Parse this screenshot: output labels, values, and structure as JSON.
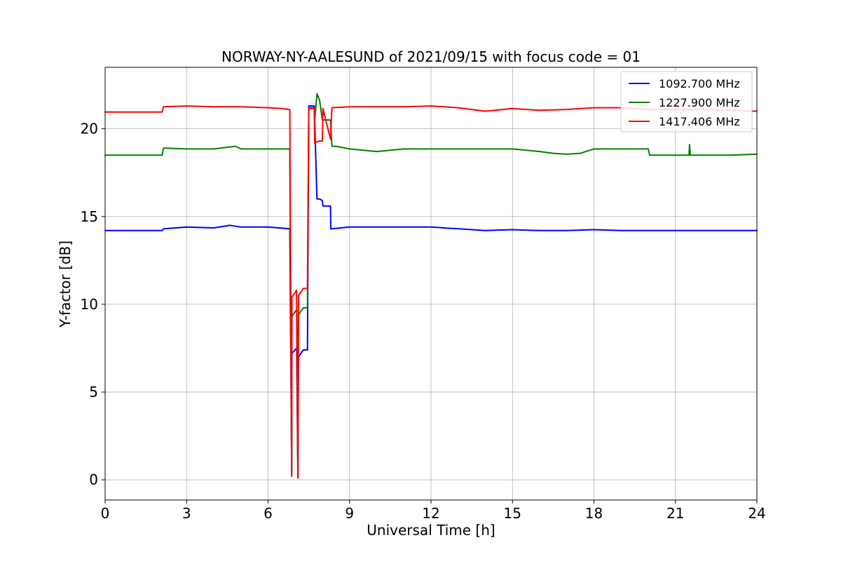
{
  "chart_data": {
    "type": "line",
    "title": "NORWAY-NY-AALESUND of 2021/09/15 with focus code = 01",
    "xlabel": "Universal Time [h]",
    "ylabel": "Y-factor [dB]",
    "xlim": [
      0,
      24
    ],
    "ylim": [
      -1.15,
      23.5
    ],
    "xticks": [
      0,
      3,
      6,
      9,
      12,
      15,
      18,
      21,
      24
    ],
    "xtick_labels": [
      "0",
      "3",
      "6",
      "9",
      "12",
      "15",
      "18",
      "21",
      "24"
    ],
    "yticks": [
      0,
      5,
      10,
      15,
      20
    ],
    "ytick_labels": [
      "0",
      "5",
      "10",
      "15",
      "20"
    ],
    "grid": true,
    "legend_position": "top-right",
    "series": [
      {
        "name": "1092.700 MHz",
        "color": "#0000ff",
        "x": [
          0,
          2.1,
          2.15,
          3,
          4,
          4.6,
          5,
          6,
          6.8,
          6.87,
          6.88,
          7.05,
          7.1,
          7.12,
          7.3,
          7.45,
          7.5,
          7.7,
          7.8,
          7.9,
          8.0,
          8.02,
          8.3,
          8.31,
          8.35,
          9,
          10,
          11,
          12,
          13,
          14,
          15,
          16,
          17,
          18,
          19,
          20,
          21,
          22,
          23,
          24
        ],
        "y": [
          14.2,
          14.2,
          14.3,
          14.4,
          14.35,
          14.5,
          14.4,
          14.4,
          14.3,
          0.5,
          7.2,
          7.5,
          0.2,
          7.0,
          7.4,
          7.4,
          21.3,
          21.3,
          16.0,
          16.0,
          15.9,
          15.6,
          15.6,
          14.3,
          14.3,
          14.4,
          14.4,
          14.4,
          14.4,
          14.3,
          14.2,
          14.25,
          14.2,
          14.2,
          14.25,
          14.2,
          14.2,
          14.2,
          14.2,
          14.2,
          14.2
        ]
      },
      {
        "name": "1227.900 MHz",
        "color": "#008000",
        "x": [
          0,
          2.1,
          2.15,
          3,
          4,
          4.8,
          5,
          6,
          6.8,
          6.87,
          6.88,
          7.05,
          7.1,
          7.12,
          7.3,
          7.45,
          7.5,
          7.7,
          7.72,
          7.8,
          7.9,
          8.0,
          8.3,
          8.35,
          8.5,
          9,
          10,
          11,
          12,
          13,
          14,
          15,
          16,
          16.5,
          17,
          17.5,
          18,
          19,
          20,
          20.05,
          21,
          21.5,
          21.52,
          21.55,
          22,
          23,
          24
        ],
        "y": [
          18.5,
          18.5,
          18.9,
          18.85,
          18.85,
          19.0,
          18.85,
          18.85,
          18.85,
          0.3,
          9.3,
          9.7,
          0.15,
          9.4,
          9.8,
          9.8,
          21.2,
          21.2,
          20.5,
          22.0,
          21.6,
          20.5,
          20.5,
          19.0,
          19.0,
          18.85,
          18.7,
          18.85,
          18.85,
          18.85,
          18.85,
          18.85,
          18.7,
          18.6,
          18.55,
          18.6,
          18.85,
          18.85,
          18.85,
          18.5,
          18.5,
          18.5,
          19.1,
          18.5,
          18.5,
          18.5,
          18.55
        ]
      },
      {
        "name": "1417.406 MHz",
        "color": "#ff0000",
        "x": [
          0,
          2.1,
          2.15,
          3,
          4,
          5,
          6,
          6.5,
          6.8,
          6.87,
          6.88,
          7.05,
          7.1,
          7.12,
          7.3,
          7.45,
          7.5,
          7.7,
          7.72,
          7.9,
          8.0,
          8.02,
          8.3,
          8.35,
          9,
          10,
          11,
          12,
          13,
          14,
          15,
          16,
          17,
          18,
          19,
          20,
          21,
          22,
          23,
          24
        ],
        "y": [
          20.95,
          20.95,
          21.25,
          21.3,
          21.25,
          21.25,
          21.2,
          21.15,
          21.1,
          0.2,
          10.4,
          10.8,
          0.1,
          10.5,
          10.9,
          10.9,
          21.15,
          21.15,
          19.2,
          19.3,
          19.3,
          21.15,
          19.4,
          21.2,
          21.25,
          21.25,
          21.25,
          21.3,
          21.2,
          21.0,
          21.15,
          21.05,
          21.1,
          21.2,
          21.2,
          21.1,
          21.1,
          21.1,
          21.05,
          21.0
        ]
      }
    ]
  }
}
